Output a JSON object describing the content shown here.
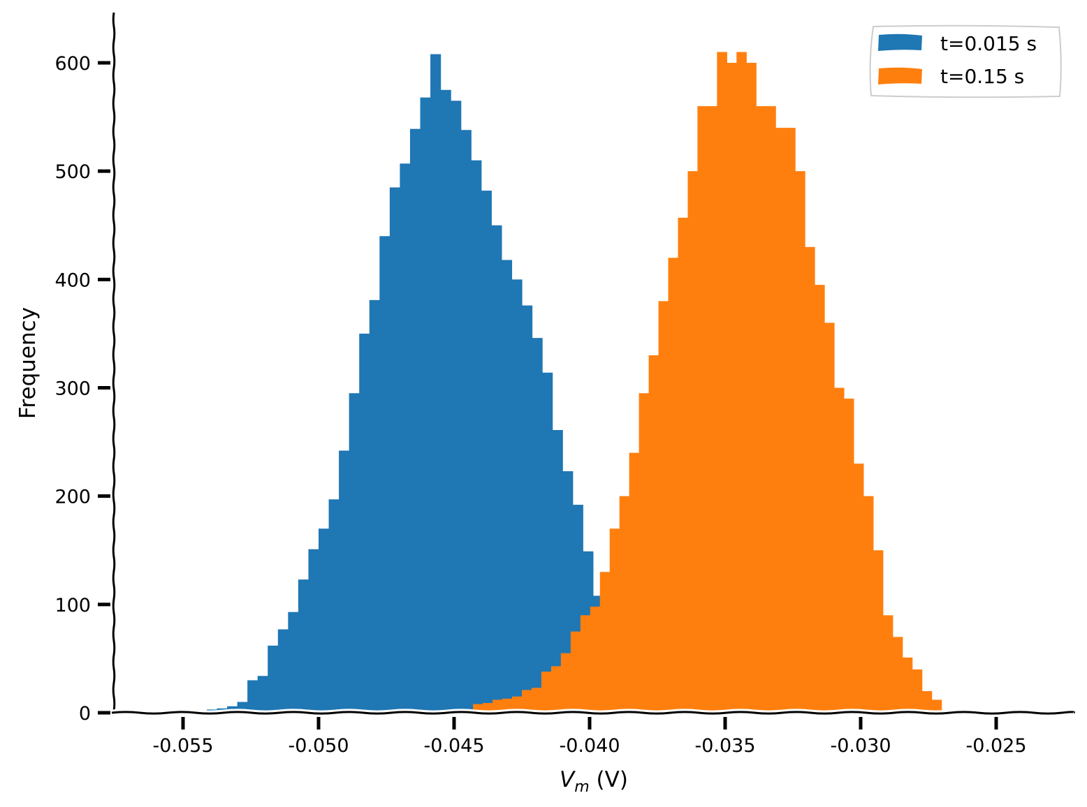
{
  "chart_data": {
    "type": "histogram",
    "title": "",
    "xlabel_main": "V",
    "xlabel_sub": "m",
    "xlabel_unit": " (V)",
    "ylabel": "Frequency",
    "xlim": [
      -0.0575,
      -0.022
    ],
    "ylim": [
      0,
      645
    ],
    "xticks": [
      -0.055,
      -0.05,
      -0.045,
      -0.04,
      -0.035,
      -0.03,
      -0.025
    ],
    "xtick_labels": [
      "-0.055",
      "-0.050",
      "-0.045",
      "-0.040",
      "-0.035",
      "-0.030",
      "-0.025"
    ],
    "yticks": [
      0,
      100,
      200,
      300,
      400,
      500,
      600
    ],
    "ytick_labels": [
      "0",
      "100",
      "200",
      "300",
      "400",
      "500",
      "600"
    ],
    "legend_position": "top-right",
    "grid": false,
    "series": [
      {
        "name": "t=0.015 s",
        "color": "#1f77b4",
        "bin_start": -0.0545,
        "bin_width": 0.000375,
        "values": [
          2,
          3,
          4,
          6,
          10,
          30,
          34,
          62,
          77,
          93,
          123,
          151,
          170,
          197,
          242,
          295,
          350,
          381,
          440,
          485,
          507,
          539,
          568,
          608,
          575,
          565,
          538,
          510,
          482,
          450,
          418,
          400,
          376,
          346,
          314,
          261,
          223,
          192,
          149,
          108,
          76,
          66,
          36,
          20,
          14,
          10,
          7,
          6
        ]
      },
      {
        "name": "t=0.15 s",
        "color": "#ff7f0e",
        "bin_start": -0.0443,
        "bin_width": 0.00036,
        "values": [
          8,
          9,
          12,
          13,
          15,
          21,
          23,
          38,
          43,
          55,
          75,
          90,
          98,
          130,
          170,
          200,
          240,
          295,
          330,
          380,
          420,
          457,
          500,
          560,
          560,
          610,
          600,
          610,
          600,
          560,
          560,
          540,
          540,
          500,
          430,
          395,
          360,
          300,
          290,
          230,
          200,
          150,
          90,
          70,
          51,
          40,
          20,
          12
        ]
      }
    ]
  }
}
